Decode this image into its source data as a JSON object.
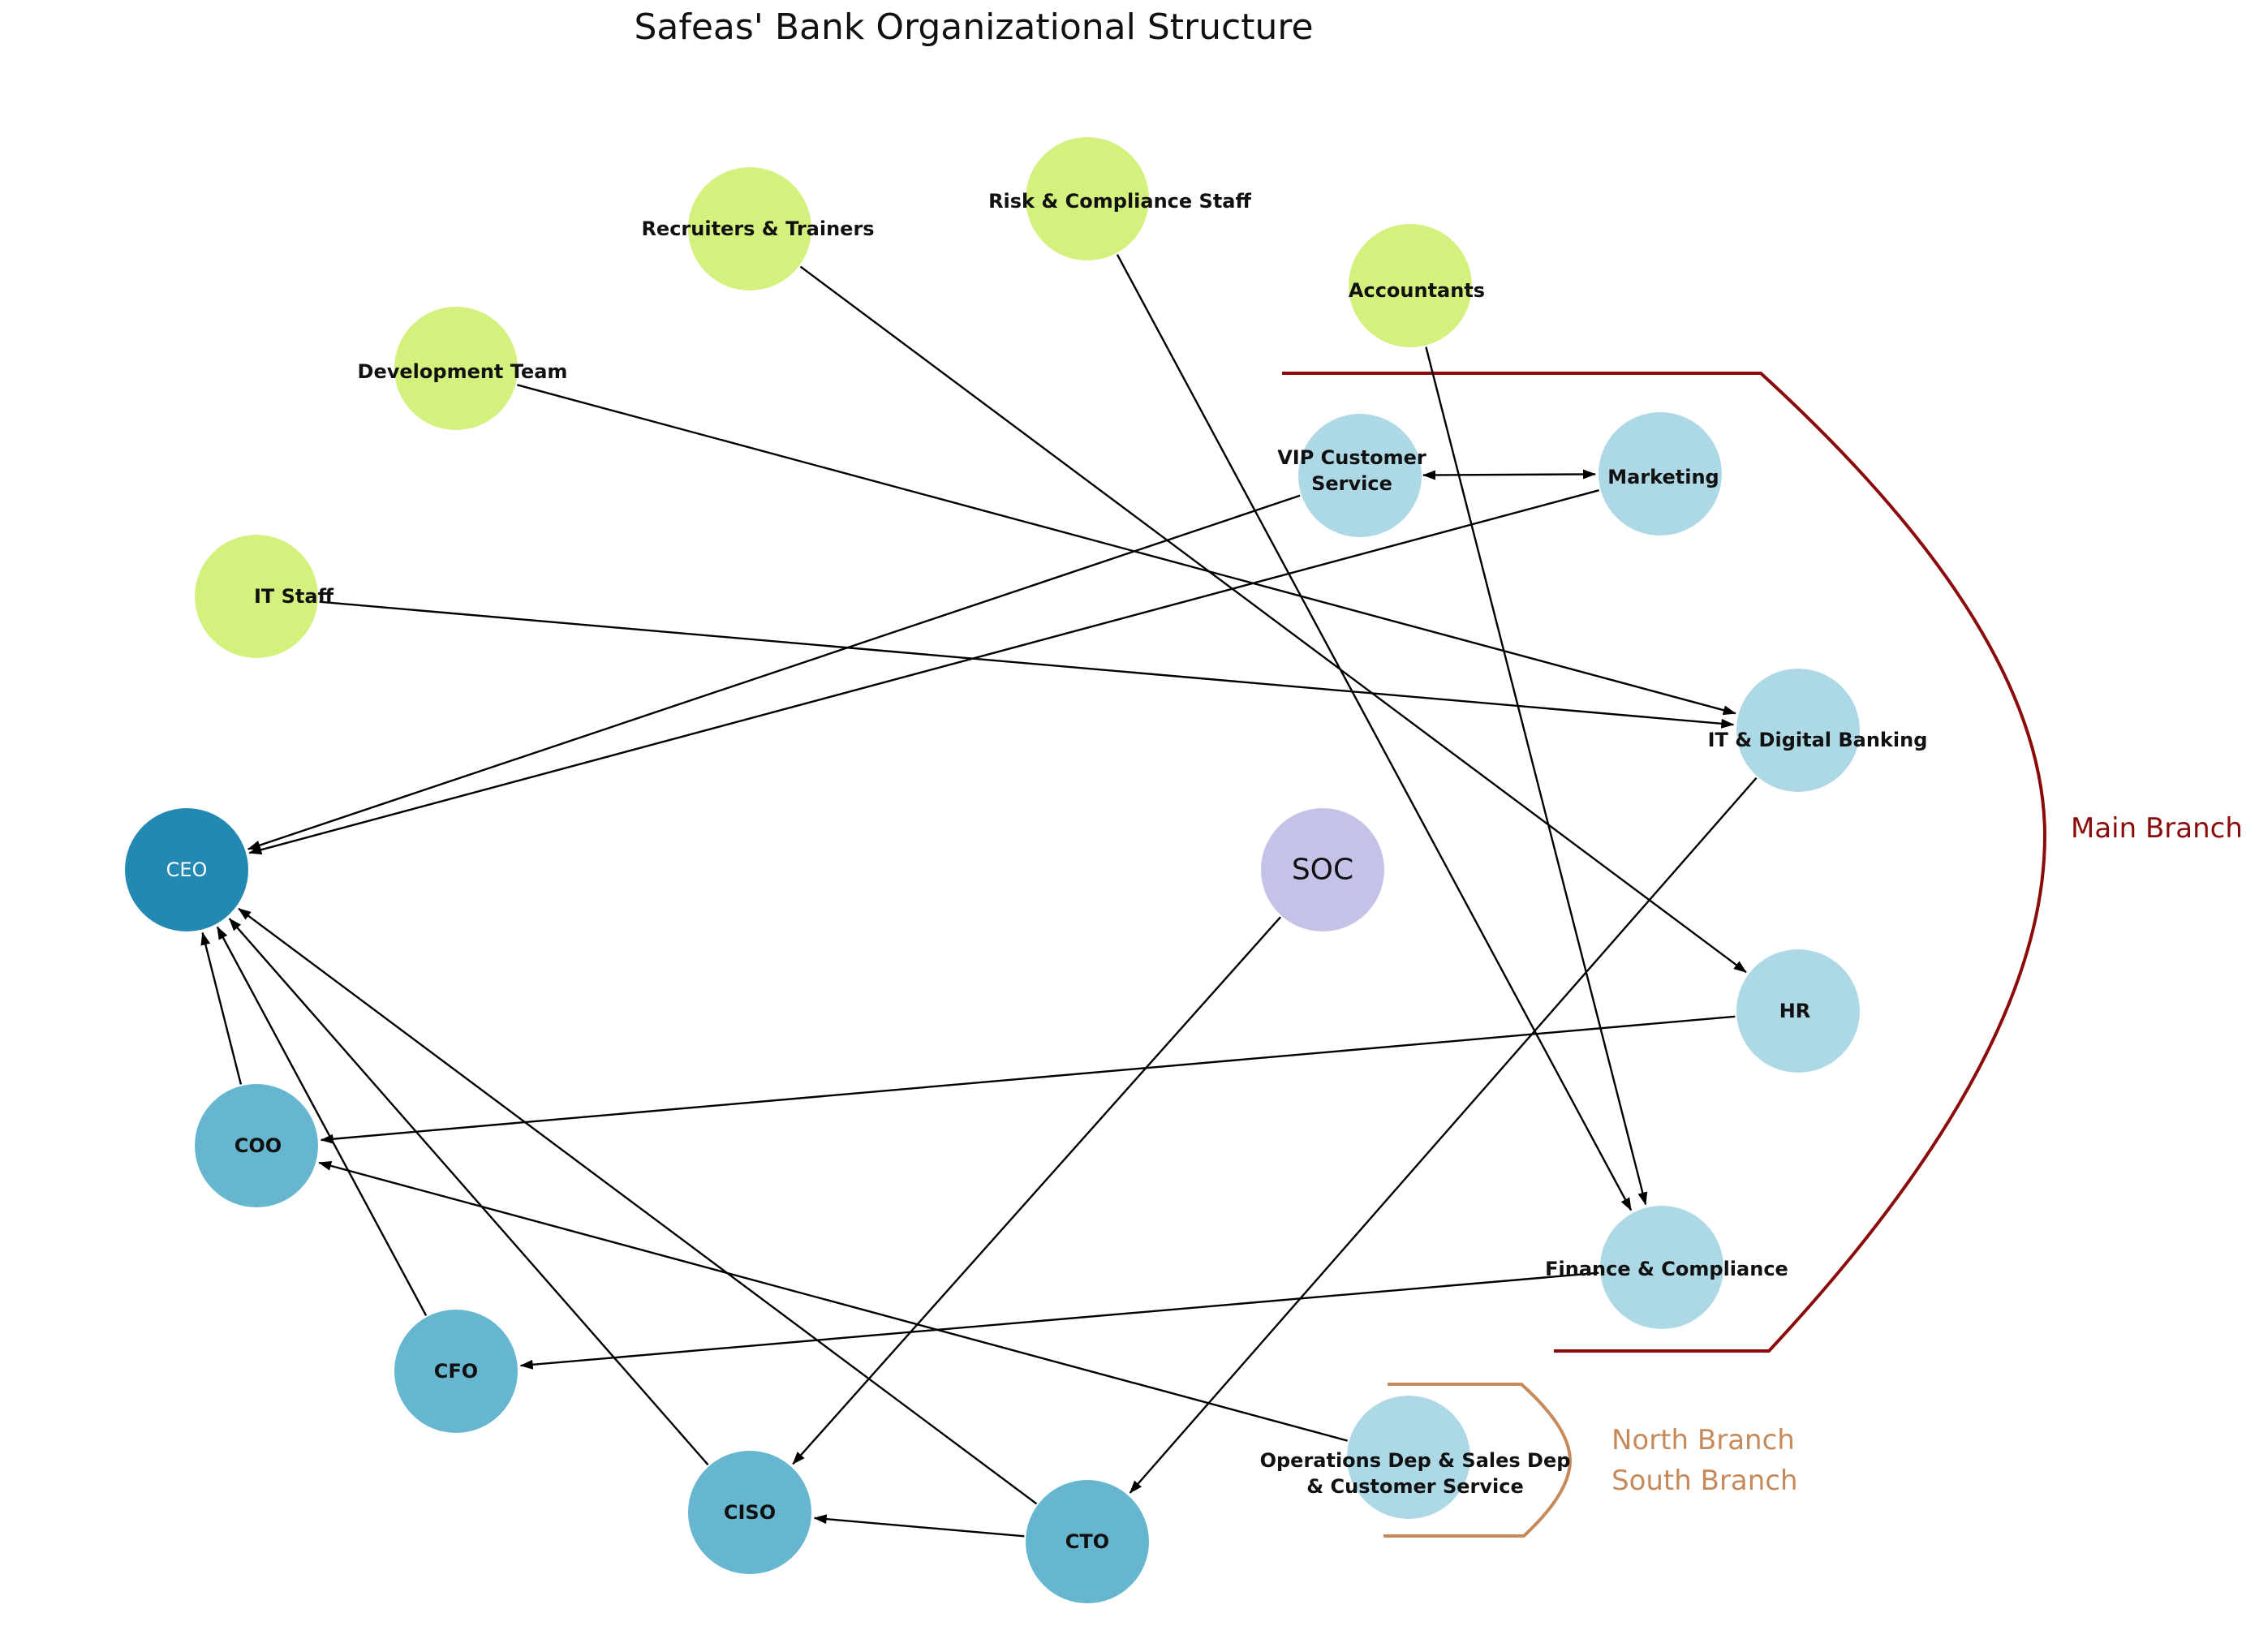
{
  "title": "Safeas' Bank Organizational Structure",
  "colors": {
    "staff": "#d4f07d",
    "department": "#add8e6",
    "executive": "#67b6cf",
    "ceo": "#2389b3",
    "soc": "#c5c2e8",
    "main_branch": "#8b0a0a",
    "north_south_branch": "#c68a5a",
    "edge": "#000000"
  },
  "nodes": [
    {
      "id": "recruiters",
      "role": "staff",
      "lines": [
        "Recruiters & Trainers"
      ]
    },
    {
      "id": "risk-staff",
      "role": "staff",
      "lines": [
        "Risk & Compliance  Staff"
      ]
    },
    {
      "id": "accountants",
      "role": "staff",
      "lines": [
        "Accountants"
      ]
    },
    {
      "id": "dev-team",
      "role": "staff",
      "lines": [
        "Development Team"
      ]
    },
    {
      "id": "it-staff",
      "role": "staff",
      "lines": [
        "IT  Staff"
      ]
    },
    {
      "id": "vip",
      "role": "department",
      "lines": [
        "VIP Customer",
        "Service"
      ]
    },
    {
      "id": "marketing",
      "role": "department",
      "lines": [
        "Marketing"
      ]
    },
    {
      "id": "it-digital",
      "role": "department",
      "lines": [
        "IT & Digital Banking"
      ]
    },
    {
      "id": "hr",
      "role": "department",
      "lines": [
        "HR"
      ]
    },
    {
      "id": "finance",
      "role": "department",
      "lines": [
        "Finance & Compliance"
      ]
    },
    {
      "id": "operations",
      "role": "department",
      "lines": [
        "Operations Dep & Sales Dep",
        "& Customer Service"
      ]
    },
    {
      "id": "ceo",
      "role": "ceo",
      "lines": [
        "CEO"
      ]
    },
    {
      "id": "coo",
      "role": "executive",
      "lines": [
        "COO"
      ]
    },
    {
      "id": "cfo",
      "role": "executive",
      "lines": [
        "CFO"
      ]
    },
    {
      "id": "ciso",
      "role": "executive",
      "lines": [
        "CISO"
      ]
    },
    {
      "id": "cto",
      "role": "executive",
      "lines": [
        "CTO"
      ]
    },
    {
      "id": "soc",
      "role": "soc",
      "lines": [
        "SOC"
      ]
    }
  ],
  "edges": [
    {
      "from": "recruiters",
      "to": "hr"
    },
    {
      "from": "risk-staff",
      "to": "finance"
    },
    {
      "from": "accountants",
      "to": "finance"
    },
    {
      "from": "dev-team",
      "to": "it-digital"
    },
    {
      "from": "it-staff",
      "to": "it-digital"
    },
    {
      "from": "vip",
      "to": "marketing",
      "bidirectional": true
    },
    {
      "from": "vip",
      "to": "ceo"
    },
    {
      "from": "marketing",
      "to": "ceo"
    },
    {
      "from": "it-digital",
      "to": "cto"
    },
    {
      "from": "hr",
      "to": "coo"
    },
    {
      "from": "finance",
      "to": "cfo"
    },
    {
      "from": "operations",
      "to": "coo"
    },
    {
      "from": "soc",
      "to": "ciso"
    },
    {
      "from": "cto",
      "to": "ciso"
    },
    {
      "from": "coo",
      "to": "ceo"
    },
    {
      "from": "cfo",
      "to": "ceo"
    },
    {
      "from": "ciso",
      "to": "ceo"
    },
    {
      "from": "cto",
      "to": "ceo"
    }
  ],
  "branches": {
    "main": "Main Branch",
    "north": "North Branch",
    "south": "South Branch"
  }
}
